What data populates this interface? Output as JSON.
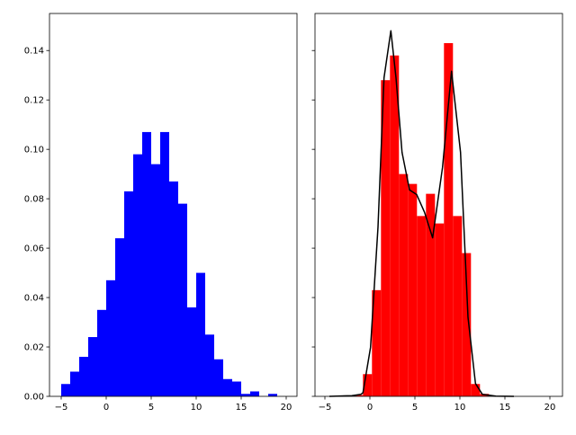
{
  "chart_data": [
    {
      "type": "bar",
      "subtype": "histogram",
      "color": "#0000ff",
      "bin_width": 1,
      "bin_starts": [
        -5,
        -4,
        -3,
        -2,
        -1,
        0,
        1,
        2,
        3,
        4,
        5,
        6,
        7,
        8,
        9,
        10,
        11,
        12,
        13,
        14,
        15,
        16,
        17,
        18
      ],
      "values": [
        0.005,
        0.01,
        0.016,
        0.024,
        0.035,
        0.047,
        0.064,
        0.083,
        0.098,
        0.107,
        0.094,
        0.107,
        0.087,
        0.078,
        0.036,
        0.05,
        0.025,
        0.015,
        0.007,
        0.006,
        0.001,
        0.002,
        0.0,
        0.001
      ],
      "xlim": [
        -6.3,
        21.2
      ],
      "ylim": [
        0,
        0.155
      ],
      "xticks": [
        "−5",
        "0",
        "5",
        "10",
        "15",
        "20"
      ],
      "xtick_values": [
        -5,
        0,
        5,
        10,
        15,
        20
      ],
      "yticks": [
        "0.00",
        "0.02",
        "0.04",
        "0.06",
        "0.08",
        "0.10",
        "0.12",
        "0.14"
      ],
      "ytick_values": [
        0,
        0.02,
        0.04,
        0.06,
        0.08,
        0.1,
        0.12,
        0.14
      ],
      "grid": false
    },
    {
      "type": "bar",
      "subtype": "histogram",
      "color": "#ff0000",
      "line_color": "#000000",
      "bin_width": 1,
      "bin_starts": [
        -1.77,
        -0.77,
        0.23,
        1.23,
        2.23,
        3.23,
        4.23,
        5.23,
        6.23,
        7.23,
        8.23,
        9.23,
        10.23,
        11.23,
        12.23
      ],
      "values": [
        0.0005,
        0.009,
        0.043,
        0.128,
        0.138,
        0.09,
        0.086,
        0.073,
        0.082,
        0.07,
        0.143,
        0.073,
        0.058,
        0.005,
        0.001
      ],
      "kde": {
        "type": "line",
        "x": [
          -4.5,
          -2,
          -1,
          -0.77,
          0.07,
          0.9,
          1.57,
          2.33,
          2.9,
          3.57,
          4.4,
          5.2,
          6.07,
          6.97,
          8.07,
          9.07,
          10.07,
          10.9,
          11.73,
          12.5,
          14,
          16
        ],
        "y": [
          0,
          0.0003,
          0.0008,
          0.0015,
          0.0198,
          0.0685,
          0.129,
          0.148,
          0.129,
          0.0988,
          0.0836,
          0.0817,
          0.0745,
          0.0642,
          0.0927,
          0.1316,
          0.0988,
          0.032,
          0.0052,
          0.0008,
          0.0001,
          0
        ]
      },
      "xlim": [
        -6.1,
        21.4
      ],
      "ylim": [
        0,
        0.155
      ],
      "xticks": [
        "−5",
        "0",
        "5",
        "10",
        "15",
        "20"
      ],
      "xtick_values": [
        -5,
        0,
        5,
        10,
        15,
        20
      ],
      "ytick_values": [
        0,
        0.02,
        0.04,
        0.06,
        0.08,
        0.1,
        0.12,
        0.14
      ],
      "grid": false
    }
  ]
}
